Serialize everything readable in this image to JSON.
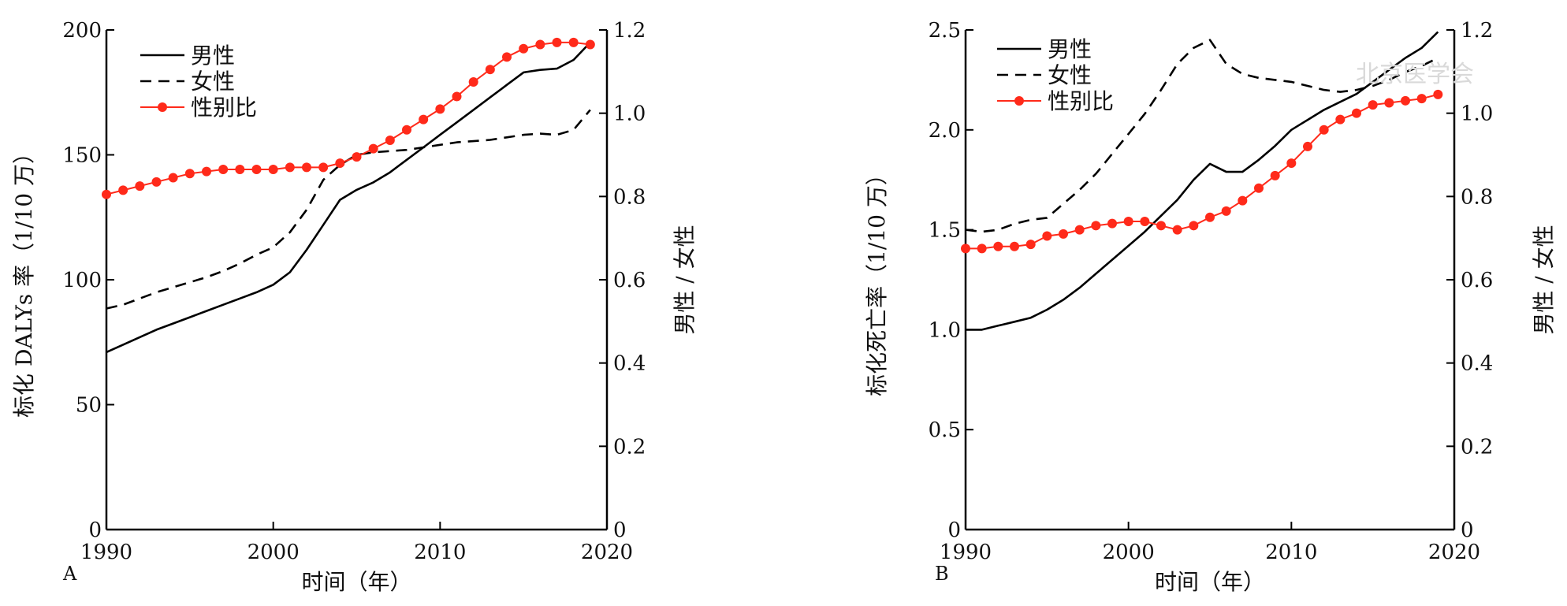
{
  "chart_data": [
    {
      "type": "line",
      "panel_label": "A",
      "xlabel": "时间（年）",
      "ylabel": "标化 DALYs 率（1/10 万）",
      "y2label": "男性 / 女性",
      "xlim": [
        1990,
        2020
      ],
      "ylim": [
        0,
        200
      ],
      "y2lim": [
        0,
        1.2
      ],
      "x_ticks": [
        "1990",
        "2000",
        "2010",
        "2020"
      ],
      "y_ticks": [
        "0",
        "50",
        "100",
        "150",
        "200"
      ],
      "y2_ticks": [
        "0",
        "0.2",
        "0.4",
        "0.6",
        "0.8",
        "1.0",
        "1.2"
      ],
      "legend_position": "top-left",
      "grid": false,
      "series": [
        {
          "name": "男性",
          "axis": "left",
          "style": "solid",
          "color": "#000000",
          "x": [
            1990,
            1991,
            1992,
            1993,
            1994,
            1995,
            1996,
            1997,
            1998,
            1999,
            2000,
            2001,
            2002,
            2003,
            2004,
            2005,
            2006,
            2007,
            2008,
            2009,
            2010,
            2011,
            2012,
            2013,
            2014,
            2015,
            2016,
            2017,
            2018,
            2019
          ],
          "y": [
            71,
            74,
            77,
            80,
            82.5,
            85,
            87.5,
            90,
            92.5,
            95,
            98,
            103,
            112,
            122,
            132,
            136,
            139,
            143,
            148,
            153,
            158,
            163,
            168,
            173,
            178,
            183,
            184,
            184.5,
            188,
            195
          ]
        },
        {
          "name": "女性",
          "axis": "left",
          "style": "dashed",
          "color": "#000000",
          "x": [
            1990,
            1991,
            1992,
            1993,
            1994,
            1995,
            1996,
            1997,
            1998,
            1999,
            2000,
            2001,
            2002,
            2003,
            2004,
            2005,
            2006,
            2007,
            2008,
            2009,
            2010,
            2011,
            2012,
            2013,
            2014,
            2015,
            2016,
            2017,
            2018,
            2019
          ],
          "y": [
            88.5,
            90,
            92.5,
            95,
            97,
            99,
            101,
            103.5,
            106.5,
            110,
            113,
            119,
            128,
            140,
            146,
            150,
            151,
            151.5,
            152,
            153,
            154,
            155,
            155.5,
            156,
            157,
            158,
            158.5,
            158,
            160,
            168
          ]
        },
        {
          "name": "性别比",
          "axis": "right",
          "style": "solid-marker",
          "color": "#ff2a1a",
          "x": [
            1990,
            1991,
            1992,
            1993,
            1994,
            1995,
            1996,
            1997,
            1998,
            1999,
            2000,
            2001,
            2002,
            2003,
            2004,
            2005,
            2006,
            2007,
            2008,
            2009,
            2010,
            2011,
            2012,
            2013,
            2014,
            2015,
            2016,
            2017,
            2018,
            2019
          ],
          "y": [
            0.805,
            0.815,
            0.825,
            0.835,
            0.845,
            0.855,
            0.86,
            0.865,
            0.865,
            0.865,
            0.865,
            0.87,
            0.87,
            0.87,
            0.88,
            0.895,
            0.915,
            0.935,
            0.96,
            0.985,
            1.01,
            1.04,
            1.075,
            1.105,
            1.135,
            1.155,
            1.165,
            1.17,
            1.17,
            1.165
          ]
        }
      ]
    },
    {
      "type": "line",
      "panel_label": "B",
      "xlabel": "时间（年）",
      "ylabel": "标化死亡率（1/10 万）",
      "y2label": "男性 / 女性",
      "xlim": [
        1990,
        2020
      ],
      "ylim": [
        0,
        2.5
      ],
      "y2lim": [
        0,
        1.2
      ],
      "x_ticks": [
        "1990",
        "2000",
        "2010",
        "2020"
      ],
      "y_ticks": [
        "0",
        "0.5",
        "1.0",
        "1.5",
        "2.0",
        "2.5"
      ],
      "y2_ticks": [
        "0",
        "0.2",
        "0.4",
        "0.6",
        "0.8",
        "1.0",
        "1.2"
      ],
      "legend_position": "top-left",
      "grid": false,
      "series": [
        {
          "name": "男性",
          "axis": "left",
          "style": "solid",
          "color": "#000000",
          "x": [
            1990,
            1991,
            1992,
            1993,
            1994,
            1995,
            1996,
            1997,
            1998,
            1999,
            2000,
            2001,
            2002,
            2003,
            2004,
            2005,
            2006,
            2007,
            2008,
            2009,
            2010,
            2011,
            2012,
            2013,
            2014,
            2015,
            2016,
            2017,
            2018,
            2019
          ],
          "y": [
            1.0,
            1.0,
            1.02,
            1.04,
            1.06,
            1.1,
            1.15,
            1.21,
            1.28,
            1.35,
            1.42,
            1.49,
            1.57,
            1.65,
            1.75,
            1.83,
            1.79,
            1.79,
            1.85,
            1.92,
            2.0,
            2.05,
            2.1,
            2.14,
            2.18,
            2.24,
            2.3,
            2.36,
            2.41,
            2.49
          ]
        },
        {
          "name": "女性",
          "axis": "left",
          "style": "dashed",
          "color": "#000000",
          "x": [
            1990,
            1991,
            1992,
            1993,
            1994,
            1995,
            1996,
            1997,
            1998,
            1999,
            2000,
            2001,
            2002,
            2003,
            2004,
            2005,
            2006,
            2007,
            2008,
            2009,
            2010,
            2011,
            2012,
            2013,
            2014,
            2015,
            2016,
            2017,
            2018,
            2019
          ],
          "y": [
            1.5,
            1.49,
            1.5,
            1.53,
            1.55,
            1.56,
            1.63,
            1.7,
            1.78,
            1.88,
            1.98,
            2.08,
            2.2,
            2.33,
            2.41,
            2.45,
            2.33,
            2.28,
            2.26,
            2.25,
            2.24,
            2.22,
            2.2,
            2.19,
            2.2,
            2.22,
            2.25,
            2.29,
            2.32,
            2.36
          ]
        },
        {
          "name": "性别比",
          "axis": "right",
          "style": "solid-marker",
          "color": "#ff2a1a",
          "x": [
            1990,
            1991,
            1992,
            1993,
            1994,
            1995,
            1996,
            1997,
            1998,
            1999,
            2000,
            2001,
            2002,
            2003,
            2004,
            2005,
            2006,
            2007,
            2008,
            2009,
            2010,
            2011,
            2012,
            2013,
            2014,
            2015,
            2016,
            2017,
            2018,
            2019
          ],
          "y": [
            0.675,
            0.675,
            0.68,
            0.68,
            0.685,
            0.705,
            0.71,
            0.72,
            0.73,
            0.735,
            0.74,
            0.74,
            0.73,
            0.72,
            0.73,
            0.75,
            0.765,
            0.79,
            0.82,
            0.85,
            0.88,
            0.92,
            0.96,
            0.985,
            1.0,
            1.02,
            1.025,
            1.03,
            1.035,
            1.045
          ]
        }
      ]
    }
  ],
  "watermark": {
    "text": "北京医学会",
    "color": "#d9d9d9"
  }
}
